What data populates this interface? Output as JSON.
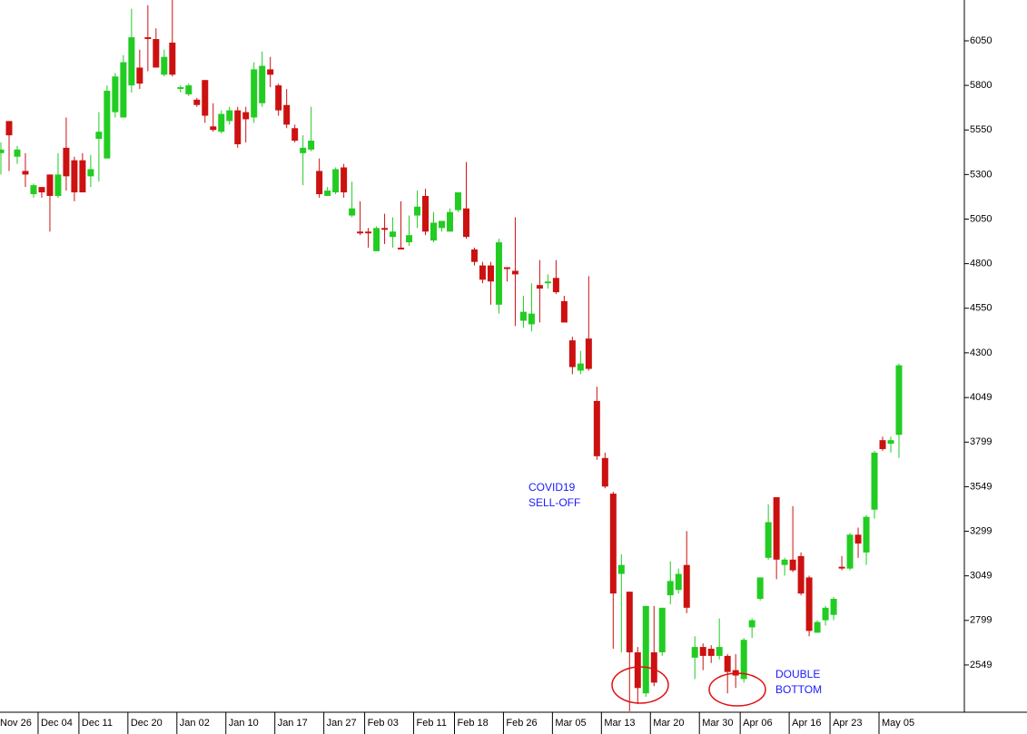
{
  "chart_data": {
    "type": "candlestick",
    "categories": [
      "Nov 26",
      null,
      null,
      null,
      null,
      "Dec 04",
      null,
      null,
      null,
      null,
      "Dec 11",
      null,
      null,
      null,
      null,
      null,
      "Dec 20",
      null,
      null,
      null,
      null,
      null,
      "Jan 02",
      null,
      null,
      null,
      null,
      null,
      "Jan 10",
      null,
      null,
      null,
      null,
      null,
      "Jan 17",
      null,
      null,
      null,
      null,
      null,
      "Jan 27",
      null,
      null,
      null,
      null,
      "Feb 03",
      null,
      null,
      null,
      null,
      null,
      "Feb 11",
      null,
      null,
      null,
      null,
      "Feb 18",
      null,
      null,
      null,
      null,
      null,
      "Feb 26",
      null,
      null,
      null,
      null,
      null,
      "Mar 05",
      null,
      null,
      null,
      null,
      null,
      "Mar 13",
      null,
      null,
      null,
      null,
      null,
      "Mar 20",
      null,
      null,
      null,
      null,
      null,
      "Mar 30",
      null,
      null,
      null,
      null,
      "Apr 06",
      null,
      null,
      null,
      null,
      null,
      "Apr 16",
      null,
      null,
      null,
      null,
      "Apr 23",
      null,
      null,
      null,
      null,
      null,
      "May 05",
      null,
      null
    ],
    "open": [
      5420,
      5600,
      5400,
      5320,
      5190,
      5230,
      5300,
      5180,
      5450,
      5380,
      5380,
      5290,
      5500,
      5390,
      5650,
      5620,
      5800,
      5900,
      6070,
      6060,
      5860,
      6040,
      5780,
      5750,
      5720,
      5830,
      5570,
      5540,
      5600,
      5660,
      5650,
      5620,
      5700,
      5890,
      5800,
      5690,
      5560,
      5420,
      5440,
      5320,
      5180,
      5200,
      5340,
      5070,
      4980,
      4980,
      4870,
      5000,
      4950,
      4890,
      4920,
      5070,
      5180,
      4930,
      5000,
      4980,
      5100,
      5110,
      4880,
      4790,
      4790,
      4570,
      4780,
      4760,
      4480,
      4460,
      4680,
      4690,
      4720,
      4590,
      4370,
      4200,
      4380,
      4030,
      3710,
      3510,
      3060,
      2960,
      2620,
      2390,
      2620,
      2620,
      2940,
      2970,
      3110,
      2590,
      2650,
      2640,
      2600,
      2600,
      2520,
      2470,
      2760,
      2920,
      3150,
      3490,
      3110,
      3140,
      3160,
      3040,
      2730,
      2800,
      2830,
      3100,
      3090,
      3280,
      3180,
      3420,
      3810,
      3790,
      3840
    ],
    "high": [
      5480,
      5600,
      5460,
      5420,
      5250,
      5230,
      5300,
      5420,
      5620,
      5400,
      5420,
      5410,
      5650,
      5800,
      5870,
      5970,
      6230,
      6000,
      6250,
      6120,
      6000,
      6320,
      5800,
      5810,
      5730,
      5830,
      5700,
      5660,
      5680,
      5680,
      5680,
      5930,
      5990,
      5960,
      5810,
      5780,
      5580,
      5520,
      5680,
      5390,
      5230,
      5340,
      5360,
      5260,
      5150,
      5000,
      5010,
      5080,
      5060,
      5150,
      5070,
      5210,
      5220,
      5090,
      5040,
      5110,
      5200,
      5370,
      4890,
      4810,
      4810,
      4940,
      4780,
      5060,
      4620,
      4690,
      4820,
      4740,
      4820,
      4620,
      4390,
      4310,
      4730,
      4110,
      3740,
      3520,
      3170,
      2960,
      2650,
      2880,
      2880,
      2870,
      3130,
      3090,
      3300,
      2710,
      2670,
      2660,
      2810,
      2610,
      2610,
      2700,
      2810,
      3040,
      3450,
      3490,
      3150,
      3440,
      3180,
      3050,
      2800,
      2880,
      2930,
      3160,
      3290,
      3320,
      3390,
      3750,
      3830,
      3830,
      4240
    ],
    "low": [
      5300,
      5320,
      5360,
      5230,
      5170,
      5170,
      4980,
      5170,
      5210,
      5150,
      5210,
      5230,
      5260,
      5390,
      5620,
      5620,
      5760,
      5780,
      5880,
      5900,
      5850,
      5850,
      5760,
      5740,
      5680,
      5590,
      5540,
      5530,
      5580,
      5450,
      5480,
      5590,
      5680,
      5790,
      5630,
      5560,
      5480,
      5240,
      5430,
      5170,
      5180,
      5190,
      5170,
      5060,
      4960,
      4890,
      4870,
      4910,
      4890,
      4880,
      4900,
      5000,
      4960,
      4920,
      4980,
      4980,
      5090,
      4940,
      4790,
      4690,
      4570,
      4520,
      4700,
      4450,
      4440,
      4420,
      4470,
      4660,
      4630,
      4470,
      4180,
      4180,
      4200,
      3700,
      3540,
      2640,
      2620,
      2290,
      2330,
      2370,
      2430,
      2600,
      2890,
      2950,
      2840,
      2470,
      2520,
      2560,
      2580,
      2390,
      2420,
      2450,
      2700,
      2910,
      3140,
      3030,
      3050,
      3070,
      2940,
      2710,
      2730,
      2770,
      2800,
      3080,
      3080,
      3150,
      3110,
      3370,
      3750,
      3740,
      3710
    ],
    "close": [
      5440,
      5520,
      5440,
      5300,
      5240,
      5200,
      5180,
      5300,
      5290,
      5200,
      5200,
      5330,
      5540,
      5770,
      5850,
      5930,
      6070,
      5810,
      6060,
      5900,
      5960,
      5860,
      5790,
      5800,
      5690,
      5630,
      5550,
      5640,
      5660,
      5470,
      5610,
      5890,
      5910,
      5860,
      5660,
      5580,
      5490,
      5450,
      5490,
      5190,
      5210,
      5330,
      5200,
      5110,
      4970,
      4970,
      5000,
      4990,
      4980,
      4880,
      4960,
      5120,
      4980,
      5030,
      5040,
      5090,
      5200,
      4950,
      4810,
      4710,
      4700,
      4920,
      4770,
      4740,
      4530,
      4520,
      4660,
      4700,
      4640,
      4470,
      4220,
      4240,
      4210,
      3720,
      3550,
      2950,
      3110,
      2620,
      2420,
      2880,
      2450,
      2870,
      3020,
      3060,
      2870,
      2650,
      2600,
      2600,
      2650,
      2510,
      2490,
      2690,
      2800,
      3040,
      3350,
      3140,
      3140,
      3080,
      2950,
      2740,
      2790,
      2870,
      2920,
      3090,
      3280,
      3230,
      3380,
      3740,
      3760,
      3810,
      4230
    ],
    "up_color": "#22cc22",
    "down_color": "#cc1111",
    "ylim": [
      2284,
      6279
    ],
    "yticks": [
      2549,
      2799,
      3049,
      3299,
      3549,
      3799,
      4049,
      4300,
      4550,
      4800,
      5050,
      5300,
      5550,
      5800,
      6050
    ],
    "annotations": [
      {
        "lines": [
          "COVID19",
          "SELL-OFF"
        ]
      },
      {
        "lines": [
          "DOUBLE",
          "BOTTOM"
        ]
      }
    ]
  }
}
